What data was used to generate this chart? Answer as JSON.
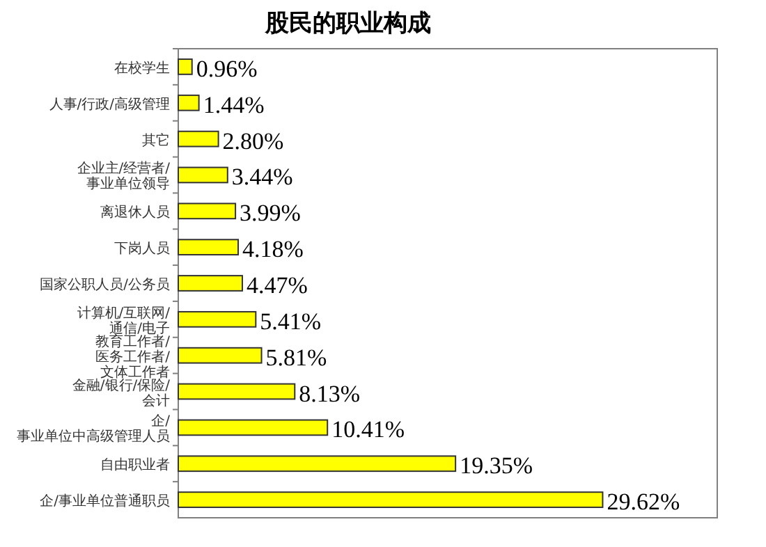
{
  "chart_data": {
    "type": "bar",
    "orientation": "horizontal",
    "title": "股民的职业构成",
    "categories": [
      "在校学生",
      "人事/行政/高级管理",
      "其它",
      "企业主/经营者/事业单位领导",
      "离退休人员",
      "下岗人员",
      "国家公职人员/公务员",
      "计算机/互联网/通信/电子",
      "教育工作者/医务工作者/文体工作者",
      "金融/银行/保险/会计",
      "企/事业单位中高级管理人员",
      "自由职业者",
      "企/事业单位普通职员"
    ],
    "values": [
      0.96,
      1.44,
      2.8,
      3.44,
      3.99,
      4.18,
      4.47,
      5.41,
      5.81,
      8.13,
      10.41,
      19.35,
      29.62
    ],
    "value_labels": [
      "0.96%",
      "1.44%",
      "2.80%",
      "3.44%",
      "3.99%",
      "4.18%",
      "4.47%",
      "5.41%",
      "5.81%",
      "8.13%",
      "10.41%",
      "19.35%",
      "29.62%"
    ],
    "color": "#ffff00"
  }
}
